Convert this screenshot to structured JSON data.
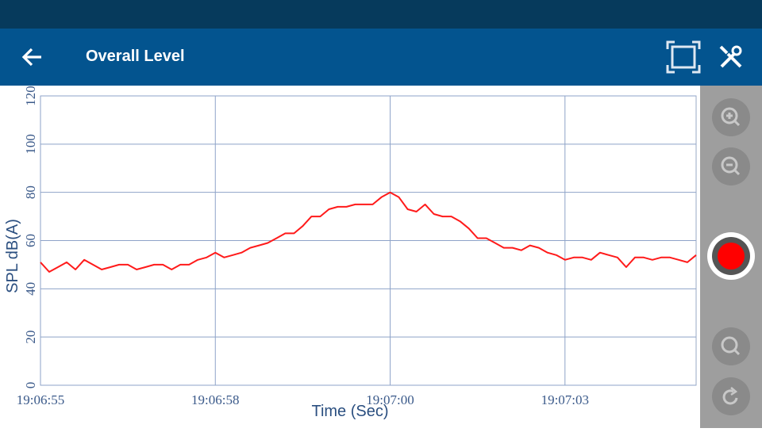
{
  "header": {
    "title": "Overall Level"
  },
  "chart_data": {
    "type": "line",
    "x_label": "Time (Sec)",
    "y_label": "SPL dB(A)",
    "categories": [
      "19:06:55",
      null,
      null,
      null,
      null,
      null,
      null,
      null,
      null,
      null,
      null,
      null,
      null,
      null,
      null,
      null,
      null,
      null,
      null,
      null,
      "19:06:58",
      null,
      null,
      null,
      null,
      null,
      null,
      null,
      null,
      null,
      null,
      null,
      null,
      null,
      null,
      null,
      null,
      null,
      null,
      null,
      "19:07:00",
      null,
      null,
      null,
      null,
      null,
      null,
      null,
      null,
      null,
      null,
      null,
      null,
      null,
      null,
      null,
      null,
      null,
      null,
      null,
      "19:07:03",
      null,
      null,
      null,
      null,
      null,
      null,
      null,
      null,
      null,
      null,
      null,
      null,
      null,
      null,
      null
    ],
    "values": [
      51,
      47,
      49,
      51,
      48,
      52,
      50,
      48,
      49,
      50,
      50,
      48,
      49,
      50,
      50,
      48,
      50,
      50,
      52,
      53,
      55,
      53,
      54,
      55,
      57,
      58,
      59,
      61,
      63,
      63,
      66,
      70,
      70,
      73,
      74,
      74,
      75,
      75,
      75,
      78,
      80,
      78,
      73,
      72,
      75,
      71,
      70,
      70,
      68,
      65,
      61,
      61,
      59,
      57,
      57,
      56,
      58,
      57,
      55,
      54,
      52,
      53,
      53,
      52,
      55,
      54,
      53,
      49,
      53,
      53,
      52,
      53,
      53,
      52,
      51,
      54
    ],
    "color": "#ff1a1a",
    "ylim": [
      0,
      120
    ],
    "yticks": [
      0,
      20,
      40,
      60,
      80,
      100,
      120
    ],
    "grid": true
  }
}
